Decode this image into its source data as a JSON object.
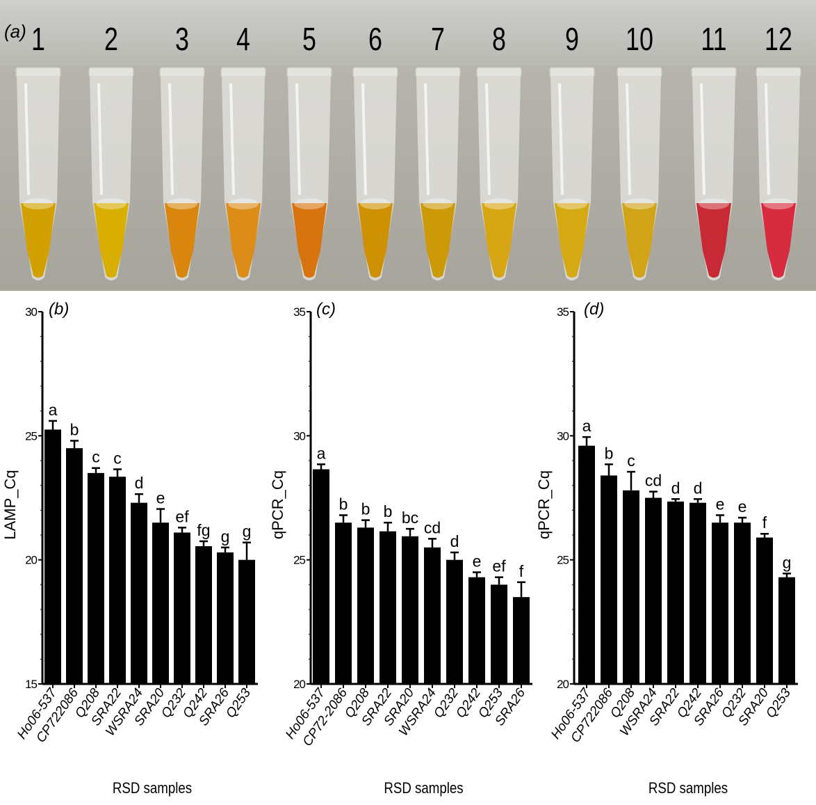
{
  "panel_a": {
    "label": "(a)",
    "tubes": [
      {
        "number": "1",
        "color": "#d2a100"
      },
      {
        "number": "2",
        "color": "#d8ae00"
      },
      {
        "number": "3",
        "color": "#d9860e"
      },
      {
        "number": "4",
        "color": "#dc8c18"
      },
      {
        "number": "5",
        "color": "#d7740f"
      },
      {
        "number": "6",
        "color": "#cf9104"
      },
      {
        "number": "7",
        "color": "#cc9a08"
      },
      {
        "number": "8",
        "color": "#d7a614"
      },
      {
        "number": "9",
        "color": "#d5a914"
      },
      {
        "number": "10",
        "color": "#d1a316"
      },
      {
        "number": "11",
        "color": "#c72a34"
      },
      {
        "number": "12",
        "color": "#d72c3f"
      }
    ]
  },
  "chart_data": [
    {
      "type": "bar",
      "panel": "(b)",
      "ylabel": "LAMP_Cq",
      "xlabel": "RSD samples",
      "ylim": [
        15,
        30
      ],
      "yticks": [
        "15",
        "20",
        "25",
        "30"
      ],
      "categories": [
        "Ho06-537",
        "CP722086",
        "Q208",
        "SRA22",
        "WSRA24",
        "SRA20",
        "Q232",
        "Q242",
        "SRA26",
        "Q253"
      ],
      "values": [
        25.25,
        24.5,
        23.5,
        23.35,
        22.3,
        21.5,
        21.1,
        20.55,
        20.3,
        20.0
      ],
      "errors": [
        0.35,
        0.3,
        0.2,
        0.3,
        0.35,
        0.55,
        0.2,
        0.2,
        0.2,
        0.7
      ],
      "significance": [
        "a",
        "b",
        "c",
        "c",
        "d",
        "e",
        "ef",
        "fg",
        "g",
        "g"
      ]
    },
    {
      "type": "bar",
      "panel": "(c)",
      "ylabel": "qPCR_Cq",
      "xlabel": "RSD samples",
      "ylim": [
        20,
        35
      ],
      "yticks": [
        "20",
        "25",
        "30",
        "35"
      ],
      "categories": [
        "Ho06-537",
        "CP72-2086",
        "Q208",
        "SRA22",
        "SRA20",
        "WSRA24",
        "Q232",
        "Q242",
        "Q253",
        "SRA26"
      ],
      "values": [
        28.65,
        26.5,
        26.3,
        26.15,
        25.95,
        25.5,
        25.0,
        24.3,
        24.0,
        23.5
      ],
      "errors": [
        0.2,
        0.3,
        0.3,
        0.35,
        0.3,
        0.35,
        0.3,
        0.2,
        0.3,
        0.6
      ],
      "significance": [
        "a",
        "b",
        "b",
        "b",
        "bc",
        "cd",
        "d",
        "e",
        "ef",
        "f"
      ]
    },
    {
      "type": "bar",
      "panel": "(d)",
      "ylabel": "qPCR_Cq",
      "xlabel": "RSD samples",
      "ylim": [
        20,
        35
      ],
      "yticks": [
        "20",
        "25",
        "30",
        "35"
      ],
      "categories": [
        "Ho06-537",
        "CP722086",
        "Q208",
        "WSRA24",
        "SRA22",
        "Q242",
        "SRA26",
        "Q232",
        "SRA20",
        "Q253"
      ],
      "values": [
        29.6,
        28.4,
        27.8,
        27.5,
        27.35,
        27.3,
        26.5,
        26.5,
        25.9,
        24.3
      ],
      "errors": [
        0.35,
        0.45,
        0.75,
        0.25,
        0.1,
        0.15,
        0.3,
        0.2,
        0.15,
        0.15
      ],
      "significance": [
        "a",
        "b",
        "c",
        "cd",
        "d",
        "d",
        "e",
        "e",
        "f",
        "g"
      ]
    }
  ]
}
